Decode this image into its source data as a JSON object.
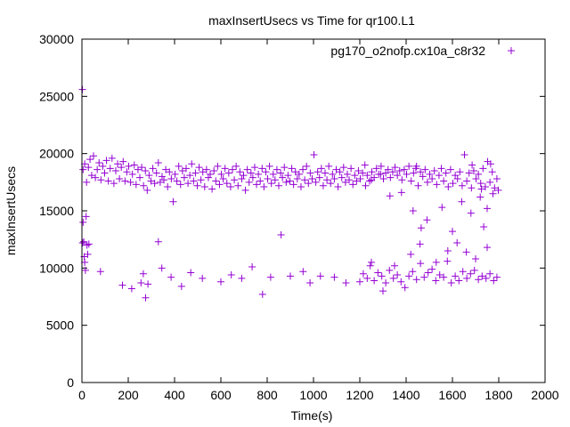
{
  "chart_data": {
    "type": "scatter",
    "title": "maxInsertUsecs vs Time for qr100.L1",
    "xlabel": "Time(s)",
    "ylabel": "maxInsertUsecs",
    "xlim": [
      0,
      2000
    ],
    "ylim": [
      0,
      30000
    ],
    "xticks": [
      0,
      200,
      400,
      600,
      800,
      1000,
      1200,
      1400,
      1600,
      1800,
      2000
    ],
    "yticks": [
      0,
      5000,
      10000,
      15000,
      20000,
      25000,
      30000
    ],
    "grid": false,
    "legend_position": "top-right",
    "marker": "+",
    "color": "#9400d3",
    "series": [
      {
        "name": "pg170_o2nofp.cx10a_c8r32",
        "points": [
          [
            2,
            25600
          ],
          [
            3,
            12200
          ],
          [
            5,
            14000
          ],
          [
            8,
            12300
          ],
          [
            10,
            11000
          ],
          [
            12,
            10500
          ],
          [
            15,
            9800
          ],
          [
            18,
            14500
          ],
          [
            22,
            12000
          ],
          [
            25,
            11200
          ],
          [
            30,
            12100
          ],
          [
            80,
            9700
          ],
          [
            175,
            8500
          ],
          [
            215,
            8200
          ],
          [
            255,
            8700
          ],
          [
            265,
            9500
          ],
          [
            275,
            7400
          ],
          [
            285,
            8600
          ],
          [
            330,
            12300
          ],
          [
            345,
            10000
          ],
          [
            385,
            9200
          ],
          [
            430,
            8400
          ],
          [
            470,
            9600
          ],
          [
            520,
            9100
          ],
          [
            600,
            8800
          ],
          [
            645,
            9400
          ],
          [
            690,
            9100
          ],
          [
            735,
            10100
          ],
          [
            780,
            7700
          ],
          [
            815,
            9200
          ],
          [
            860,
            12900
          ],
          [
            900,
            9300
          ],
          [
            955,
            9700
          ],
          [
            985,
            8700
          ],
          [
            1030,
            9300
          ],
          [
            1090,
            9200
          ],
          [
            1140,
            8700
          ],
          [
            1200,
            8800
          ],
          [
            1215,
            9500
          ],
          [
            1232,
            9100
          ],
          [
            1245,
            10200
          ],
          [
            1262,
            8900
          ],
          [
            1278,
            9600
          ],
          [
            1295,
            9300
          ],
          [
            1312,
            8700
          ],
          [
            1328,
            9800
          ],
          [
            1345,
            9100
          ],
          [
            1362,
            9400
          ],
          [
            1378,
            8800
          ],
          [
            1395,
            8300
          ],
          [
            1412,
            9300
          ],
          [
            1428,
            9700
          ],
          [
            1445,
            9000
          ],
          [
            1462,
            10400
          ],
          [
            1478,
            9200
          ],
          [
            1495,
            9600
          ],
          [
            1512,
            9900
          ],
          [
            1528,
            8900
          ],
          [
            1545,
            9400
          ],
          [
            1562,
            9200
          ],
          [
            1578,
            10600
          ],
          [
            1595,
            8700
          ],
          [
            1612,
            9300
          ],
          [
            1628,
            8900
          ],
          [
            1645,
            9700
          ],
          [
            1662,
            9100
          ],
          [
            1678,
            9500
          ],
          [
            1695,
            9800
          ],
          [
            1712,
            9000
          ],
          [
            1728,
            9300
          ],
          [
            1745,
            9100
          ],
          [
            1762,
            9500
          ],
          [
            1778,
            8900
          ],
          [
            1792,
            9200
          ],
          [
            1250,
            10500
          ],
          [
            1300,
            8000
          ],
          [
            1350,
            10200
          ],
          [
            1420,
            11200
          ],
          [
            1460,
            12100
          ],
          [
            1530,
            10500
          ],
          [
            1580,
            11500
          ],
          [
            1620,
            12200
          ],
          [
            1660,
            11400
          ],
          [
            1700,
            10800
          ],
          [
            1735,
            13600
          ],
          [
            1750,
            11800
          ],
          [
            1430,
            15000
          ],
          [
            1465,
            13500
          ],
          [
            1490,
            14200
          ],
          [
            1555,
            15300
          ],
          [
            1600,
            13200
          ],
          [
            1640,
            15800
          ],
          [
            1680,
            14800
          ],
          [
            1720,
            16200
          ],
          [
            1750,
            15200
          ],
          [
            1775,
            16500
          ],
          [
            5,
            18600
          ],
          [
            12,
            19100
          ],
          [
            20,
            17500
          ],
          [
            28,
            18800
          ],
          [
            35,
            19500
          ],
          [
            42,
            18100
          ],
          [
            50,
            19800
          ],
          [
            58,
            17900
          ],
          [
            66,
            18600
          ],
          [
            74,
            19200
          ],
          [
            82,
            17700
          ],
          [
            90,
            18900
          ],
          [
            98,
            18300
          ],
          [
            106,
            19400
          ],
          [
            114,
            17600
          ],
          [
            122,
            18700
          ],
          [
            130,
            19600
          ],
          [
            138,
            17400
          ],
          [
            146,
            18500
          ],
          [
            154,
            19100
          ],
          [
            162,
            17800
          ],
          [
            170,
            18800
          ],
          [
            178,
            19300
          ],
          [
            186,
            17600
          ],
          [
            194,
            18400
          ],
          [
            202,
            18900
          ],
          [
            210,
            17500
          ],
          [
            218,
            18200
          ],
          [
            226,
            19000
          ],
          [
            234,
            17300
          ],
          [
            242,
            18600
          ],
          [
            250,
            17900
          ],
          [
            258,
            18800
          ],
          [
            266,
            17200
          ],
          [
            274,
            18500
          ],
          [
            282,
            16800
          ],
          [
            290,
            18100
          ],
          [
            298,
            17600
          ],
          [
            306,
            18700
          ],
          [
            314,
            17400
          ],
          [
            322,
            18300
          ],
          [
            330,
            19200
          ],
          [
            338,
            17500
          ],
          [
            346,
            18000
          ],
          [
            354,
            17700
          ],
          [
            362,
            18600
          ],
          [
            370,
            17100
          ],
          [
            378,
            18400
          ],
          [
            386,
            17800
          ],
          [
            394,
            15800
          ],
          [
            402,
            18200
          ],
          [
            410,
            17600
          ],
          [
            418,
            18900
          ],
          [
            426,
            17300
          ],
          [
            434,
            18500
          ],
          [
            442,
            17900
          ],
          [
            450,
            18700
          ],
          [
            458,
            17400
          ],
          [
            466,
            18100
          ],
          [
            474,
            19100
          ],
          [
            482,
            17600
          ],
          [
            490,
            18300
          ],
          [
            498,
            17200
          ],
          [
            506,
            18800
          ],
          [
            514,
            17700
          ],
          [
            522,
            18400
          ],
          [
            530,
            17100
          ],
          [
            538,
            18600
          ],
          [
            546,
            17900
          ],
          [
            554,
            18200
          ],
          [
            562,
            16900
          ],
          [
            570,
            18500
          ],
          [
            578,
            17600
          ],
          [
            586,
            18900
          ],
          [
            594,
            17300
          ],
          [
            602,
            18200
          ],
          [
            610,
            17800
          ],
          [
            618,
            18700
          ],
          [
            626,
            17400
          ],
          [
            634,
            18300
          ],
          [
            642,
            17100
          ],
          [
            650,
            18600
          ],
          [
            658,
            17700
          ],
          [
            666,
            18900
          ],
          [
            674,
            17200
          ],
          [
            682,
            18400
          ],
          [
            690,
            17800
          ],
          [
            698,
            18100
          ],
          [
            706,
            16800
          ],
          [
            714,
            18600
          ],
          [
            722,
            17500
          ],
          [
            730,
            18300
          ],
          [
            738,
            17900
          ],
          [
            746,
            18800
          ],
          [
            754,
            17300
          ],
          [
            762,
            18200
          ],
          [
            770,
            17600
          ],
          [
            778,
            18700
          ],
          [
            786,
            17100
          ],
          [
            794,
            18400
          ],
          [
            802,
            17800
          ],
          [
            810,
            18900
          ],
          [
            818,
            17400
          ],
          [
            826,
            18200
          ],
          [
            834,
            17700
          ],
          [
            842,
            18600
          ],
          [
            850,
            17200
          ],
          [
            858,
            18300
          ],
          [
            866,
            17900
          ],
          [
            874,
            18800
          ],
          [
            882,
            17500
          ],
          [
            890,
            18100
          ],
          [
            898,
            17600
          ],
          [
            906,
            18700
          ],
          [
            914,
            17300
          ],
          [
            922,
            18400
          ],
          [
            930,
            17800
          ],
          [
            938,
            18200
          ],
          [
            946,
            17100
          ],
          [
            954,
            18600
          ],
          [
            962,
            17700
          ],
          [
            970,
            18900
          ],
          [
            978,
            17400
          ],
          [
            986,
            18300
          ],
          [
            994,
            17800
          ],
          [
            1002,
            19900
          ],
          [
            1010,
            17500
          ],
          [
            1018,
            18400
          ],
          [
            1026,
            17900
          ],
          [
            1034,
            18700
          ],
          [
            1042,
            17200
          ],
          [
            1050,
            18300
          ],
          [
            1058,
            17700
          ],
          [
            1066,
            18900
          ],
          [
            1074,
            17400
          ],
          [
            1082,
            18200
          ],
          [
            1090,
            17800
          ],
          [
            1098,
            18600
          ],
          [
            1106,
            17100
          ],
          [
            1114,
            18400
          ],
          [
            1122,
            17900
          ],
          [
            1130,
            18800
          ],
          [
            1138,
            17500
          ],
          [
            1146,
            18200
          ],
          [
            1154,
            17700
          ],
          [
            1162,
            18700
          ],
          [
            1170,
            17300
          ],
          [
            1178,
            18100
          ],
          [
            1186,
            17600
          ],
          [
            1194,
            18500
          ],
          [
            1202,
            17800
          ],
          [
            1212,
            18300
          ],
          [
            1222,
            19000
          ],
          [
            1232,
            18100
          ],
          [
            1242,
            17600
          ],
          [
            1252,
            18400
          ],
          [
            1262,
            17900
          ],
          [
            1272,
            18700
          ],
          [
            1282,
            18200
          ],
          [
            1292,
            18900
          ],
          [
            1302,
            17800
          ],
          [
            1312,
            18300
          ],
          [
            1322,
            18600
          ],
          [
            1332,
            17900
          ],
          [
            1342,
            18400
          ],
          [
            1352,
            18800
          ],
          [
            1362,
            18100
          ],
          [
            1372,
            18500
          ],
          [
            1382,
            17700
          ],
          [
            1392,
            18600
          ],
          [
            1402,
            18200
          ],
          [
            1412,
            18900
          ],
          [
            1422,
            17600
          ],
          [
            1432,
            18300
          ],
          [
            1442,
            18700
          ],
          [
            1452,
            17200
          ],
          [
            1462,
            18400
          ],
          [
            1472,
            18000
          ],
          [
            1482,
            18600
          ],
          [
            1492,
            17500
          ],
          [
            1502,
            18200
          ],
          [
            1512,
            17800
          ],
          [
            1522,
            18500
          ],
          [
            1532,
            17300
          ],
          [
            1542,
            18100
          ],
          [
            1552,
            18700
          ],
          [
            1562,
            17600
          ],
          [
            1572,
            18300
          ],
          [
            1582,
            17100
          ],
          [
            1592,
            18600
          ],
          [
            1602,
            17400
          ],
          [
            1612,
            18100
          ],
          [
            1622,
            17800
          ],
          [
            1632,
            18400
          ],
          [
            1642,
            17200
          ],
          [
            1652,
            19900
          ],
          [
            1662,
            17600
          ],
          [
            1672,
            18300
          ],
          [
            1682,
            17000
          ],
          [
            1692,
            18500
          ],
          [
            1702,
            17800
          ],
          [
            1712,
            18200
          ],
          [
            1722,
            17400
          ],
          [
            1732,
            18700
          ],
          [
            1742,
            17100
          ],
          [
            1752,
            19300
          ],
          [
            1762,
            17500
          ],
          [
            1772,
            18400
          ],
          [
            1782,
            17000
          ],
          [
            1792,
            17800
          ],
          [
            1798,
            16800
          ],
          [
            1765,
            19100
          ],
          [
            1725,
            16900
          ],
          [
            1685,
            19000
          ],
          [
            1445,
            18900
          ],
          [
            1380,
            16600
          ],
          [
            1330,
            16300
          ],
          [
            1290,
            18200
          ],
          [
            1250,
            17700
          ],
          [
            1225,
            17200
          ]
        ]
      }
    ]
  }
}
